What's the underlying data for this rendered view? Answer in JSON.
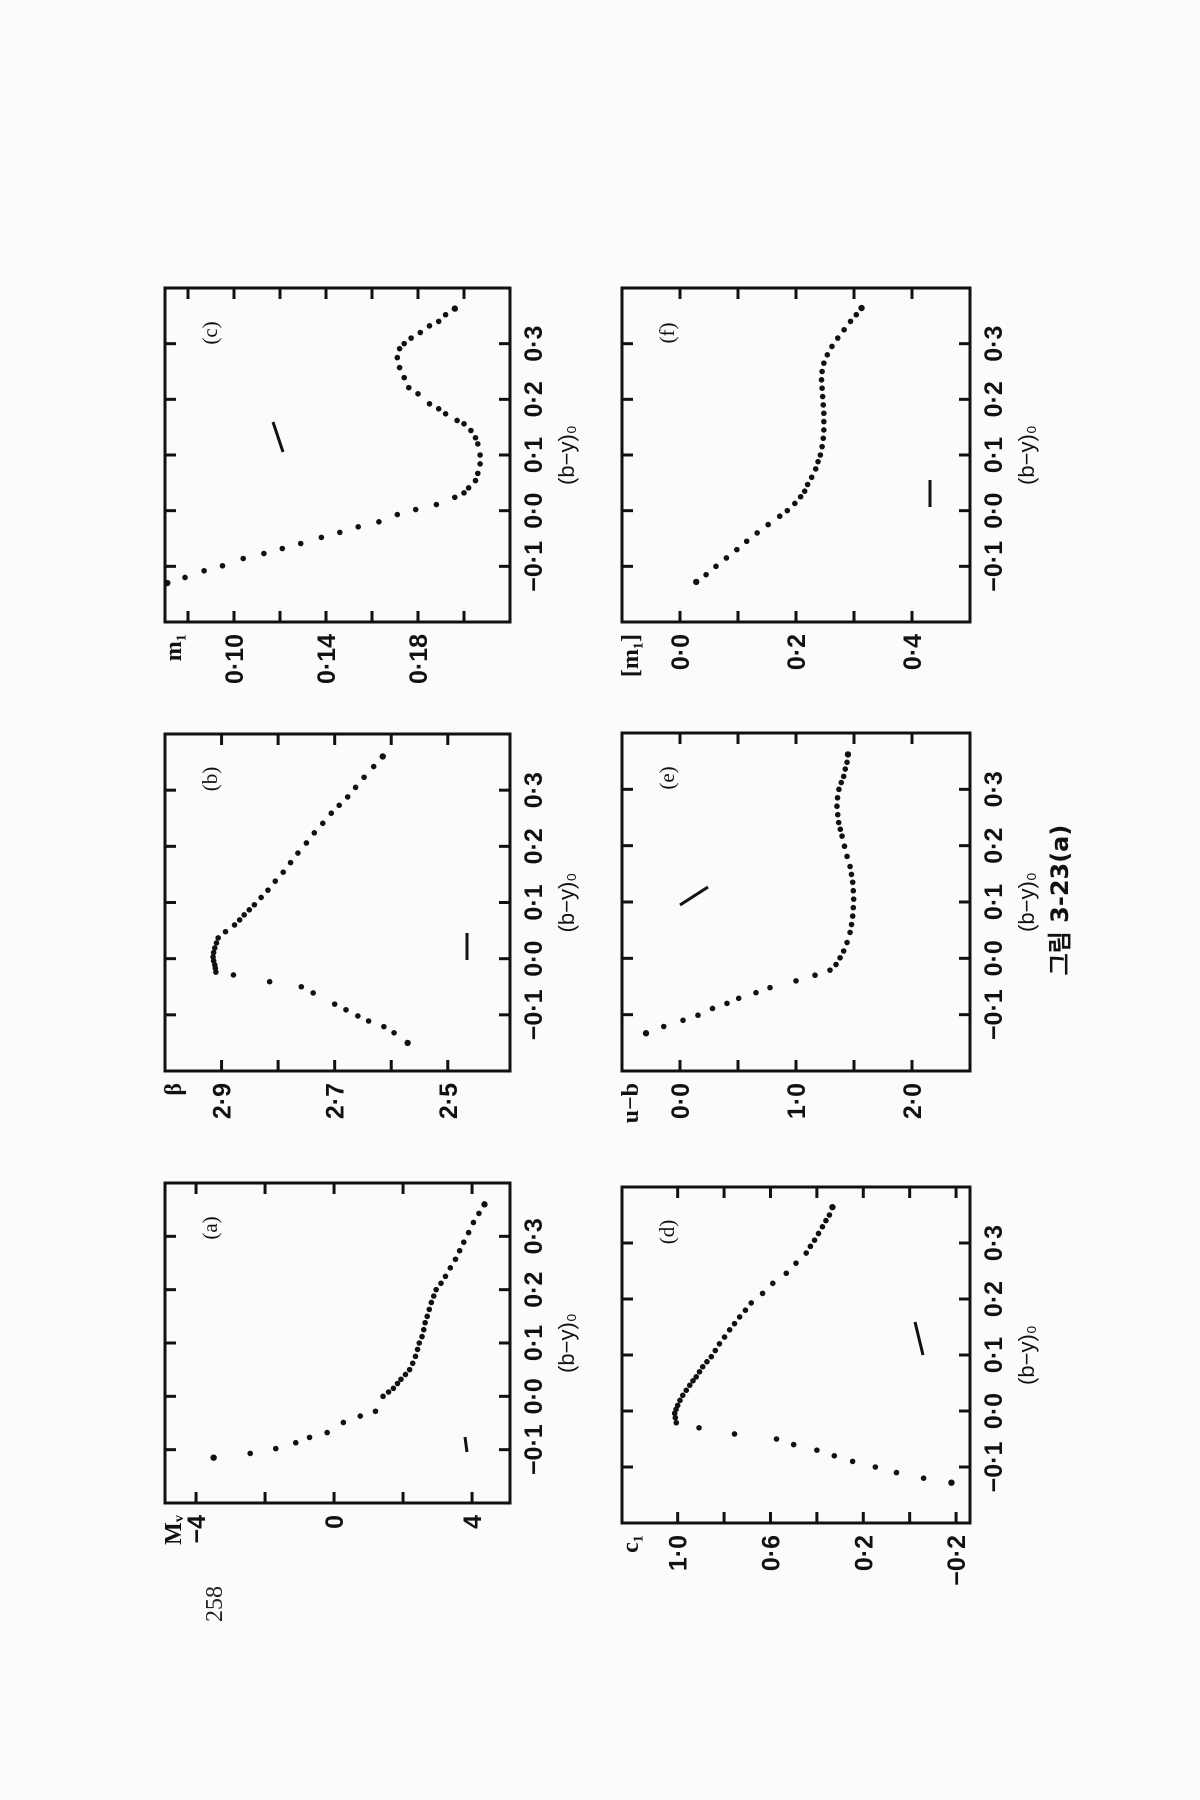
{
  "page_number": "258",
  "caption": "그림 3-23(a)",
  "chart_data": [
    {
      "type": "scatter",
      "panel_label": "(a)",
      "ylabel": "Mᵥ",
      "xlabel": "(b−y)₀",
      "xlim": [
        -0.2,
        0.4
      ],
      "ylim": [
        -4.9,
        5.1
      ],
      "xticks": [
        -0.1,
        0.0,
        0.1,
        0.2,
        0.3
      ],
      "xtick_labels": [
        "−0·1",
        "0·0",
        "0·1",
        "0·2",
        "0·3"
      ],
      "yticks": [
        -4,
        -2,
        0,
        2,
        4
      ],
      "ytick_labels": [
        "−4",
        "",
        "0",
        "",
        "4"
      ],
      "x": [
        -0.115,
        -0.107,
        -0.098,
        -0.087,
        -0.077,
        -0.068,
        -0.049,
        -0.037,
        -0.028,
        0.0,
        0.008,
        0.015,
        0.024,
        0.032,
        0.041,
        0.05,
        0.062,
        0.075,
        0.088,
        0.1,
        0.112,
        0.125,
        0.138,
        0.15,
        0.163,
        0.176,
        0.188,
        0.2,
        0.212,
        0.225,
        0.241,
        0.257,
        0.273,
        0.289,
        0.307,
        0.326,
        0.343,
        0.36
      ],
      "y": [
        -3.49,
        -2.43,
        -1.69,
        -1.11,
        -0.71,
        -0.2,
        0.27,
        0.76,
        1.2,
        1.42,
        1.58,
        1.72,
        1.84,
        1.94,
        2.07,
        2.19,
        2.28,
        2.36,
        2.42,
        2.47,
        2.55,
        2.6,
        2.64,
        2.7,
        2.76,
        2.82,
        2.89,
        2.96,
        3.1,
        3.23,
        3.37,
        3.52,
        3.64,
        3.76,
        3.9,
        4.04,
        4.2,
        4.36
      ]
    },
    {
      "type": "scatter",
      "panel_label": "(b)",
      "ylabel": "β",
      "xlabel": "(b−y)₀",
      "xlim": [
        -0.2,
        0.4
      ],
      "ylim": [
        3.0,
        2.39
      ],
      "xticks": [
        -0.1,
        0.0,
        0.1,
        0.2,
        0.3
      ],
      "xtick_labels": [
        "−0·1",
        "0·0",
        "0·1",
        "0·2",
        "0·3"
      ],
      "yticks": [
        2.9,
        2.8,
        2.7,
        2.6,
        2.5
      ],
      "ytick_labels": [
        "2·9",
        "",
        "2·7",
        "",
        "2·5"
      ],
      "x": [
        -0.15,
        -0.132,
        -0.121,
        -0.111,
        -0.102,
        -0.091,
        -0.081,
        -0.061,
        -0.05,
        -0.041,
        -0.029,
        -0.024,
        -0.017,
        -0.011,
        -0.004,
        0.003,
        0.011,
        0.019,
        0.028,
        0.037,
        0.048,
        0.06,
        0.069,
        0.078,
        0.087,
        0.096,
        0.109,
        0.122,
        0.138,
        0.154,
        0.171,
        0.188,
        0.206,
        0.224,
        0.241,
        0.259,
        0.273,
        0.288,
        0.305,
        0.323,
        0.342,
        0.36
      ],
      "y": [
        2.571,
        2.595,
        2.613,
        2.64,
        2.659,
        2.68,
        2.7,
        2.738,
        2.759,
        2.815,
        2.879,
        2.91,
        2.911,
        2.912,
        2.914,
        2.915,
        2.914,
        2.912,
        2.909,
        2.906,
        2.893,
        2.877,
        2.868,
        2.86,
        2.851,
        2.842,
        2.83,
        2.818,
        2.805,
        2.791,
        2.778,
        2.765,
        2.75,
        2.736,
        2.721,
        2.706,
        2.692,
        2.677,
        2.663,
        2.648,
        2.631,
        2.615
      ]
    },
    {
      "type": "scatter",
      "panel_label": "(c)",
      "ylabel": "m₁",
      "xlabel": "(b−y)₀",
      "xlim": [
        -0.2,
        0.4
      ],
      "ylim": [
        0.07,
        0.22
      ],
      "xticks": [
        -0.1,
        0.0,
        0.1,
        0.2,
        0.3
      ],
      "xtick_labels": [
        "−0·1",
        "0·0",
        "0·1",
        "0·2",
        "0·3"
      ],
      "yticks": [
        0.08,
        0.1,
        0.12,
        0.14,
        0.16,
        0.18,
        0.2
      ],
      "ytick_labels": [
        "",
        "0·10",
        "",
        "0·14",
        "",
        "0·18",
        ""
      ],
      "x": [
        -0.13,
        -0.12,
        -0.108,
        -0.099,
        -0.086,
        -0.077,
        -0.068,
        -0.059,
        -0.048,
        -0.039,
        -0.029,
        -0.02,
        -0.007,
        0.002,
        0.011,
        0.024,
        0.032,
        0.041,
        0.054,
        0.067,
        0.084,
        0.1,
        0.12,
        0.131,
        0.144,
        0.156,
        0.162,
        0.174,
        0.183,
        0.192,
        0.21,
        0.221,
        0.239,
        0.257,
        0.275,
        0.291,
        0.3,
        0.31,
        0.32,
        0.332,
        0.34,
        0.352,
        0.363
      ],
      "y": [
        0.071,
        0.0787,
        0.087,
        0.095,
        0.104,
        0.113,
        0.121,
        0.129,
        0.138,
        0.146,
        0.154,
        0.163,
        0.171,
        0.179,
        0.188,
        0.196,
        0.2,
        0.202,
        0.205,
        0.206,
        0.207,
        0.207,
        0.206,
        0.205,
        0.203,
        0.2,
        0.197,
        0.192,
        0.189,
        0.185,
        0.18,
        0.176,
        0.174,
        0.172,
        0.171,
        0.172,
        0.174,
        0.177,
        0.181,
        0.185,
        0.189,
        0.192,
        0.196
      ]
    },
    {
      "type": "scatter",
      "panel_label": "(d)",
      "ylabel": "c₁",
      "xlabel": "(b−y)₀",
      "xlim": [
        -0.2,
        0.4
      ],
      "ylim": [
        1.24,
        -0.26
      ],
      "xticks": [
        -0.1,
        0.0,
        0.1,
        0.2,
        0.3
      ],
      "xtick_labels": [
        "−0·1",
        "0·0",
        "0·1",
        "0·2",
        "0·3"
      ],
      "yticks": [
        1.0,
        0.8,
        0.6,
        0.4,
        0.2,
        0.0,
        -0.2
      ],
      "ytick_labels": [
        "1·0",
        "",
        "0·6",
        "",
        "0·2",
        "",
        "−0·2"
      ],
      "x": [
        -0.128,
        -0.12,
        -0.11,
        -0.1,
        -0.09,
        -0.08,
        -0.07,
        -0.06,
        -0.05,
        -0.041,
        -0.03,
        -0.021,
        -0.012,
        -0.004,
        0.003,
        0.01,
        0.019,
        0.028,
        0.037,
        0.046,
        0.054,
        0.061,
        0.07,
        0.079,
        0.088,
        0.097,
        0.108,
        0.12,
        0.132,
        0.145,
        0.156,
        0.168,
        0.18,
        0.193,
        0.21,
        0.228,
        0.246,
        0.264,
        0.282,
        0.294,
        0.305,
        0.317,
        0.329,
        0.34,
        0.35,
        0.364
      ],
      "y": [
        -0.18,
        -0.06,
        0.057,
        0.148,
        0.246,
        0.325,
        0.4,
        0.5,
        0.574,
        0.755,
        0.908,
        1.006,
        1.01,
        1.013,
        1.007,
        1.0,
        0.99,
        0.978,
        0.963,
        0.948,
        0.934,
        0.92,
        0.906,
        0.892,
        0.874,
        0.855,
        0.838,
        0.82,
        0.798,
        0.776,
        0.755,
        0.733,
        0.708,
        0.683,
        0.634,
        0.59,
        0.532,
        0.49,
        0.446,
        0.428,
        0.41,
        0.393,
        0.376,
        0.361,
        0.346,
        0.333
      ]
    },
    {
      "type": "scatter",
      "panel_label": "(e)",
      "ylabel": "u−b",
      "xlabel": "(b−y)₀",
      "xlim": [
        -0.2,
        0.4
      ],
      "ylim": [
        -0.5,
        2.5
      ],
      "xticks": [
        -0.1,
        0.0,
        0.1,
        0.2,
        0.3
      ],
      "xtick_labels": [
        "−0·1",
        "0·0",
        "0·1",
        "0·2",
        "0·3"
      ],
      "yticks": [
        0.0,
        0.5,
        1.0,
        1.5,
        2.0
      ],
      "ytick_labels": [
        "0·0",
        "",
        "1·0",
        "",
        "2·0"
      ],
      "x": [
        -0.133,
        -0.121,
        -0.11,
        -0.101,
        -0.089,
        -0.08,
        -0.071,
        -0.061,
        -0.052,
        -0.04,
        -0.03,
        -0.021,
        -0.011,
        0.001,
        0.013,
        0.028,
        0.046,
        0.06,
        0.075,
        0.09,
        0.105,
        0.12,
        0.135,
        0.149,
        0.163,
        0.181,
        0.199,
        0.217,
        0.229,
        0.241,
        0.255,
        0.27,
        0.285,
        0.3,
        0.312,
        0.323,
        0.336,
        0.348,
        0.362
      ],
      "y": [
        -0.293,
        -0.14,
        0.026,
        0.155,
        0.28,
        0.405,
        0.506,
        0.655,
        0.776,
        1.0,
        1.164,
        1.293,
        1.345,
        1.38,
        1.411,
        1.44,
        1.466,
        1.479,
        1.489,
        1.494,
        1.497,
        1.494,
        1.489,
        1.478,
        1.466,
        1.44,
        1.418,
        1.397,
        1.382,
        1.368,
        1.36,
        1.353,
        1.358,
        1.37,
        1.39,
        1.411,
        1.425,
        1.44,
        1.448
      ]
    },
    {
      "type": "scatter",
      "panel_label": "(f)",
      "ylabel": "[m₁]",
      "xlabel": "(b−y)₀",
      "xlim": [
        -0.2,
        0.4
      ],
      "ylim": [
        -0.1,
        0.5
      ],
      "xticks": [
        -0.1,
        0.0,
        0.1,
        0.2,
        0.3
      ],
      "xtick_labels": [
        "−0·1",
        "0·0",
        "0·1",
        "0·2",
        "0·3"
      ],
      "yticks": [
        0.0,
        0.1,
        0.2,
        0.3,
        0.4
      ],
      "ytick_labels": [
        "0·0",
        "",
        "0·2",
        "",
        "0·4"
      ],
      "x": [
        -0.128,
        -0.115,
        -0.1,
        -0.085,
        -0.07,
        -0.055,
        -0.04,
        -0.025,
        -0.01,
        0.0,
        0.013,
        0.025,
        0.035,
        0.047,
        0.06,
        0.075,
        0.088,
        0.1,
        0.115,
        0.13,
        0.145,
        0.16,
        0.175,
        0.19,
        0.205,
        0.22,
        0.235,
        0.25,
        0.265,
        0.28,
        0.295,
        0.31,
        0.325,
        0.34,
        0.352,
        0.364
      ],
      "y": [
        0.028,
        0.045,
        0.062,
        0.08,
        0.098,
        0.115,
        0.133,
        0.152,
        0.172,
        0.185,
        0.198,
        0.208,
        0.215,
        0.22,
        0.227,
        0.234,
        0.238,
        0.242,
        0.245,
        0.247,
        0.248,
        0.248,
        0.248,
        0.247,
        0.246,
        0.245,
        0.244,
        0.245,
        0.248,
        0.254,
        0.262,
        0.272,
        0.283,
        0.294,
        0.304,
        0.313
      ]
    }
  ]
}
